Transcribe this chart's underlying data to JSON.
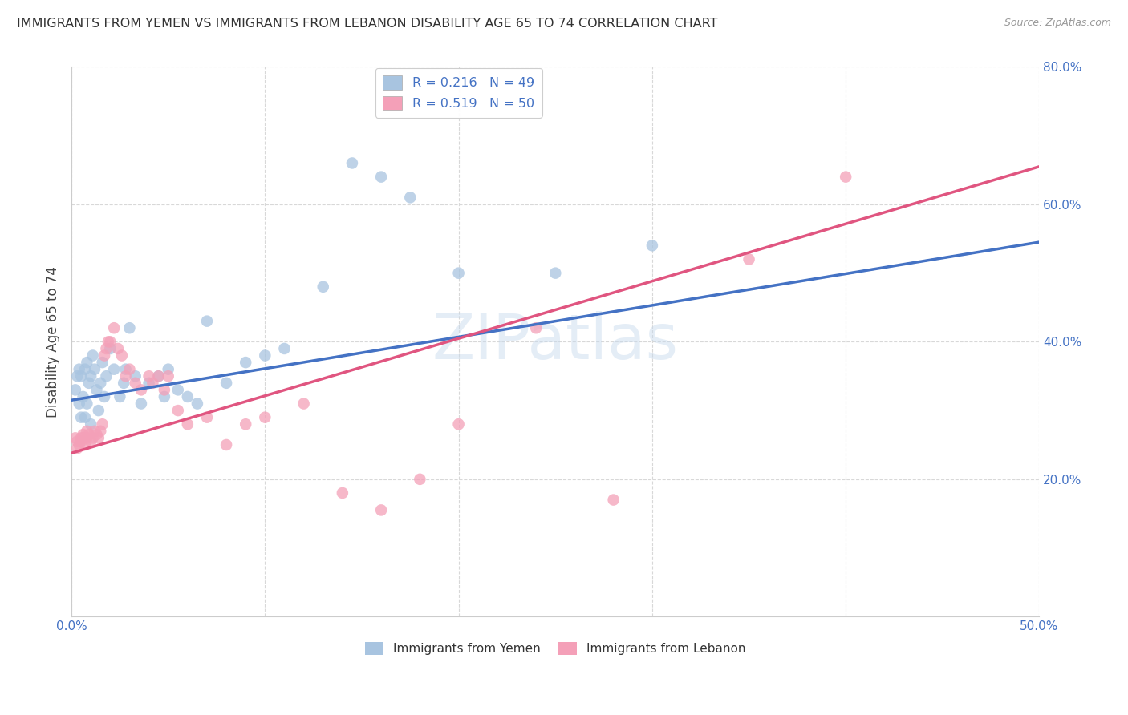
{
  "title": "IMMIGRANTS FROM YEMEN VS IMMIGRANTS FROM LEBANON DISABILITY AGE 65 TO 74 CORRELATION CHART",
  "source": "Source: ZipAtlas.com",
  "ylabel": "Disability Age 65 to 74",
  "xlim": [
    0.0,
    0.5
  ],
  "ylim": [
    0.0,
    0.8
  ],
  "x_ticks": [
    0.0,
    0.1,
    0.2,
    0.3,
    0.4,
    0.5
  ],
  "y_ticks": [
    0.0,
    0.2,
    0.4,
    0.6,
    0.8
  ],
  "watermark": "ZIPatlas",
  "legend_r1": "R = 0.216",
  "legend_n1": "N = 49",
  "legend_r2": "R = 0.519",
  "legend_n2": "N = 50",
  "color_yemen": "#a8c4e0",
  "color_lebanon": "#f4a0b8",
  "line_color_yemen": "#4472c4",
  "line_color_lebanon": "#e05580",
  "background_color": "#ffffff",
  "grid_color": "#d8d8d8",
  "yemen_x": [
    0.002,
    0.003,
    0.004,
    0.004,
    0.005,
    0.005,
    0.006,
    0.007,
    0.007,
    0.008,
    0.008,
    0.009,
    0.01,
    0.01,
    0.011,
    0.012,
    0.013,
    0.014,
    0.015,
    0.016,
    0.017,
    0.018,
    0.02,
    0.022,
    0.025,
    0.027,
    0.028,
    0.03,
    0.033,
    0.036,
    0.04,
    0.045,
    0.048,
    0.05,
    0.055,
    0.06,
    0.065,
    0.07,
    0.08,
    0.09,
    0.1,
    0.11,
    0.13,
    0.145,
    0.16,
    0.175,
    0.2,
    0.25,
    0.3
  ],
  "yemen_y": [
    0.33,
    0.35,
    0.36,
    0.31,
    0.29,
    0.35,
    0.32,
    0.36,
    0.29,
    0.37,
    0.31,
    0.34,
    0.35,
    0.28,
    0.38,
    0.36,
    0.33,
    0.3,
    0.34,
    0.37,
    0.32,
    0.35,
    0.39,
    0.36,
    0.32,
    0.34,
    0.36,
    0.42,
    0.35,
    0.31,
    0.34,
    0.35,
    0.32,
    0.36,
    0.33,
    0.32,
    0.31,
    0.43,
    0.34,
    0.37,
    0.38,
    0.39,
    0.48,
    0.66,
    0.64,
    0.61,
    0.5,
    0.5,
    0.54
  ],
  "lebanon_x": [
    0.002,
    0.003,
    0.003,
    0.004,
    0.005,
    0.005,
    0.006,
    0.006,
    0.007,
    0.008,
    0.008,
    0.009,
    0.01,
    0.011,
    0.012,
    0.013,
    0.014,
    0.015,
    0.016,
    0.017,
    0.018,
    0.019,
    0.02,
    0.022,
    0.024,
    0.026,
    0.028,
    0.03,
    0.033,
    0.036,
    0.04,
    0.042,
    0.045,
    0.048,
    0.05,
    0.055,
    0.06,
    0.07,
    0.08,
    0.09,
    0.1,
    0.12,
    0.14,
    0.16,
    0.18,
    0.2,
    0.24,
    0.28,
    0.35,
    0.4
  ],
  "lebanon_y": [
    0.26,
    0.255,
    0.245,
    0.25,
    0.26,
    0.255,
    0.26,
    0.265,
    0.25,
    0.26,
    0.27,
    0.265,
    0.255,
    0.26,
    0.27,
    0.265,
    0.26,
    0.27,
    0.28,
    0.38,
    0.39,
    0.4,
    0.4,
    0.42,
    0.39,
    0.38,
    0.35,
    0.36,
    0.34,
    0.33,
    0.35,
    0.34,
    0.35,
    0.33,
    0.35,
    0.3,
    0.28,
    0.29,
    0.25,
    0.28,
    0.29,
    0.31,
    0.18,
    0.155,
    0.2,
    0.28,
    0.42,
    0.17,
    0.52,
    0.64
  ],
  "blue_line_y0": 0.315,
  "blue_line_y1": 0.545,
  "pink_line_y0": 0.238,
  "pink_line_y1": 0.655
}
